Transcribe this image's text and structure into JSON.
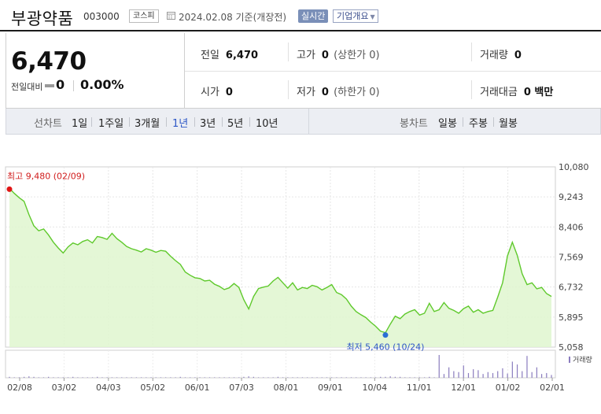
{
  "header": {
    "stock_name": "부광약품",
    "stock_code": "003000",
    "market_badge": "코스피",
    "date_text": "2024.02.08 기준(개장전)",
    "realtime_label": "실시간",
    "company_info_label": "기업개요",
    "company_info_arrow": "▼"
  },
  "quote": {
    "price": "6,470",
    "change_label": "전일대비",
    "change_value": "0",
    "change_percent": "0.00%",
    "prev_label": "전일",
    "prev_value": "6,470",
    "high_label": "고가",
    "high_value": "0",
    "high_sub": "(상한가 0)",
    "volume_label": "거래량",
    "volume_value": "0",
    "open_label": "시가",
    "open_value": "0",
    "low_label": "저가",
    "low_value": "0",
    "low_sub": "(하한가 0)",
    "amount_label": "거래대금",
    "amount_value": "0 백만"
  },
  "period": {
    "line_label": "선차트",
    "line_options": [
      "1일",
      "1주일",
      "3개월",
      "1년",
      "3년",
      "5년",
      "10년"
    ],
    "active_index": 3,
    "candle_label": "봉차트",
    "candle_options": [
      "일봉",
      "주봉",
      "월봉"
    ]
  },
  "colors": {
    "line": "#5fc92c",
    "area": "#dff6cf",
    "high_marker": "#e01515",
    "low_marker": "#2b6fd6",
    "volume_bar": "#8a7cbe",
    "active_tab": "#2d57c6"
  },
  "chart_data": {
    "type": "area",
    "y_ticks": [
      "10,080",
      "9,243",
      "8,406",
      "7,569",
      "6,732",
      "5,895",
      "5,058"
    ],
    "ylim": [
      5058,
      10080
    ],
    "x_ticks": [
      "02/08",
      "03/02",
      "04/03",
      "05/02",
      "06/01",
      "07/03",
      "08/01",
      "09/01",
      "10/04",
      "11/01",
      "12/01",
      "01/02",
      "02/01"
    ],
    "grid": true,
    "high_annotation": "최고 9,480 (02/09)",
    "low_annotation": "최저 5,460 (10/24)",
    "volume_legend": "거래량",
    "series": [
      {
        "values": [
          9480,
          9340,
          9220,
          9120,
          8750,
          8440,
          8300,
          8350,
          8180,
          7980,
          7820,
          7680,
          7850,
          7960,
          7910,
          8000,
          8050,
          7960,
          8140,
          8110,
          8060,
          8230,
          8080,
          7980,
          7860,
          7800,
          7760,
          7710,
          7800,
          7760,
          7700,
          7750,
          7730,
          7590,
          7470,
          7360,
          7150,
          7060,
          6990,
          6970,
          6900,
          6920,
          6810,
          6750,
          6660,
          6710,
          6830,
          6720,
          6380,
          6120,
          6470,
          6690,
          6730,
          6760,
          6900,
          7000,
          6850,
          6700,
          6850,
          6650,
          6720,
          6690,
          6780,
          6740,
          6650,
          6720,
          6800,
          6580,
          6520,
          6400,
          6200,
          6050,
          5960,
          5880,
          5750,
          5640,
          5500,
          5460,
          5700,
          5920,
          5850,
          5980,
          6050,
          6100,
          5950,
          6000,
          6280,
          6050,
          6100,
          6300,
          6140,
          6080,
          6000,
          6130,
          6200,
          6030,
          6100,
          6000,
          6050,
          6080,
          6450,
          6850,
          7600,
          7980,
          7620,
          7100,
          6800,
          6850,
          6680,
          6720,
          6550,
          6470
        ]
      }
    ],
    "volume": [
      2,
      1,
      1,
      2,
      3,
      2,
      1,
      1,
      2,
      1,
      1,
      1,
      1,
      2,
      1,
      1,
      1,
      1,
      2,
      1,
      1,
      1,
      1,
      1,
      1,
      1,
      1,
      1,
      1,
      1,
      1,
      1,
      1,
      1,
      1,
      2,
      1,
      1,
      1,
      1,
      1,
      1,
      1,
      1,
      1,
      1,
      1,
      1,
      2,
      3,
      2,
      1,
      1,
      1,
      1,
      2,
      1,
      1,
      1,
      1,
      1,
      1,
      1,
      1,
      1,
      1,
      1,
      1,
      1,
      1,
      1,
      1,
      1,
      1,
      1,
      1,
      2,
      2,
      3,
      2,
      2,
      1,
      1,
      1,
      1,
      1,
      2,
      1,
      48,
      8,
      22,
      14,
      12,
      26,
      10,
      18,
      16,
      8,
      12,
      10,
      14,
      20,
      9,
      34,
      28,
      14,
      46,
      12,
      22,
      8,
      10,
      6
    ]
  }
}
